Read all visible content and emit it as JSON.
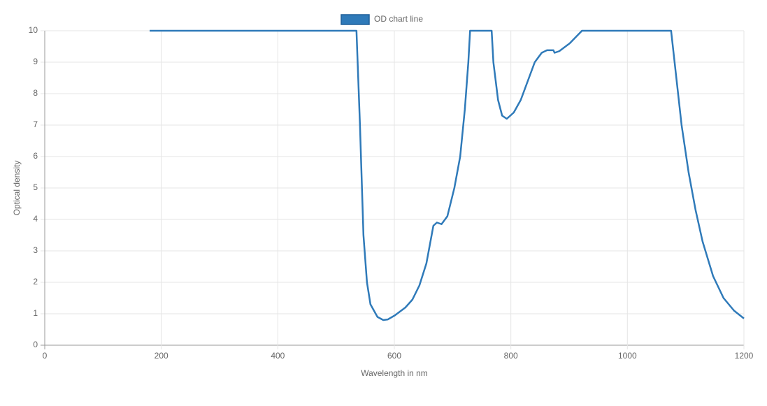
{
  "chart_data": {
    "type": "line",
    "x_label": "Wavelength in nm",
    "y_label": "Optical density",
    "xlim": [
      0,
      1200
    ],
    "xticks": [
      0,
      200,
      400,
      600,
      800,
      1000,
      1200
    ],
    "ylim": [
      0,
      10
    ],
    "yticks": [
      0,
      1,
      2,
      3,
      4,
      5,
      6,
      7,
      8,
      9,
      10
    ],
    "grid": true,
    "legend": "top",
    "series": [
      {
        "name": "OD chart line",
        "color": "#2f7ab9",
        "x": [
          180,
          535,
          541,
          547,
          553,
          559,
          571,
          581,
          589,
          601,
          619,
          631,
          643,
          655,
          661,
          667,
          673,
          681,
          691,
          703,
          713,
          721,
          727,
          730,
          767,
          770,
          778,
          785,
          793,
          805,
          817,
          829,
          841,
          853,
          862,
          873,
          875,
          883,
          901,
          922,
          1075,
          1081,
          1093,
          1105,
          1117,
          1129,
          1147,
          1165,
          1183,
          1200
        ],
        "values": [
          10,
          10,
          7,
          3.5,
          2,
          1.3,
          0.9,
          0.8,
          0.82,
          0.95,
          1.2,
          1.45,
          1.9,
          2.6,
          3.2,
          3.8,
          3.9,
          3.85,
          4.1,
          5.0,
          6.0,
          7.5,
          9.0,
          10,
          10,
          9.0,
          7.8,
          7.3,
          7.2,
          7.4,
          7.8,
          8.4,
          9.0,
          9.3,
          9.38,
          9.38,
          9.3,
          9.35,
          9.6,
          10,
          10,
          9.0,
          7.0,
          5.5,
          4.3,
          3.3,
          2.2,
          1.5,
          1.1,
          0.85
        ]
      }
    ]
  }
}
